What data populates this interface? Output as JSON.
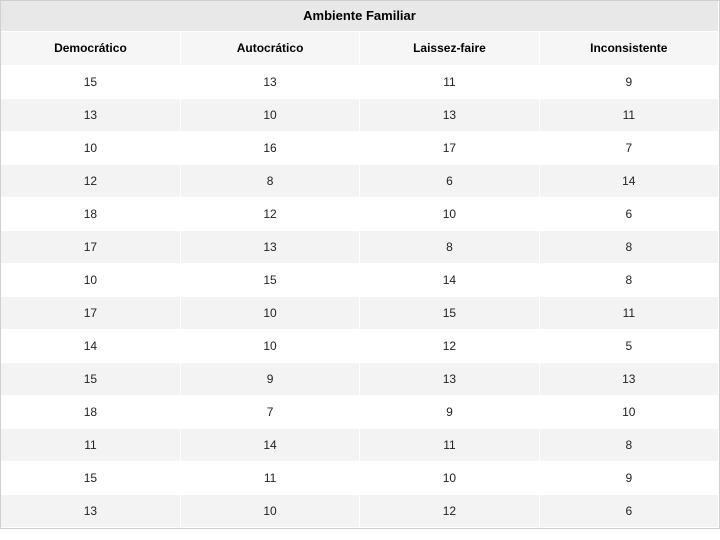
{
  "table": {
    "type": "table",
    "title": "Ambiente Familiar",
    "columns": [
      "Democrático",
      "Autocrático",
      "Laissez-faire",
      "Inconsistente"
    ],
    "rows": [
      [
        15,
        13,
        11,
        9
      ],
      [
        13,
        10,
        13,
        11
      ],
      [
        10,
        16,
        17,
        7
      ],
      [
        12,
        8,
        6,
        14
      ],
      [
        18,
        12,
        10,
        6
      ],
      [
        17,
        13,
        8,
        8
      ],
      [
        10,
        15,
        14,
        8
      ],
      [
        17,
        10,
        15,
        11
      ],
      [
        14,
        10,
        12,
        5
      ],
      [
        15,
        9,
        13,
        13
      ],
      [
        18,
        7,
        9,
        10
      ],
      [
        11,
        14,
        11,
        8
      ],
      [
        15,
        11,
        10,
        9
      ],
      [
        13,
        10,
        12,
        6
      ]
    ],
    "styling": {
      "title_bg": "#e8e8e8",
      "header_bg": "#f6f6f6",
      "row_odd_bg": "#ffffff",
      "row_even_bg": "#f3f3f3",
      "border_color": "#d0d0d0",
      "font_family": "Verdana",
      "title_fontsize": 13,
      "header_fontsize": 12,
      "cell_fontsize": 12,
      "text_color": "#222222",
      "col_count": 4,
      "cell_align": "center"
    }
  }
}
